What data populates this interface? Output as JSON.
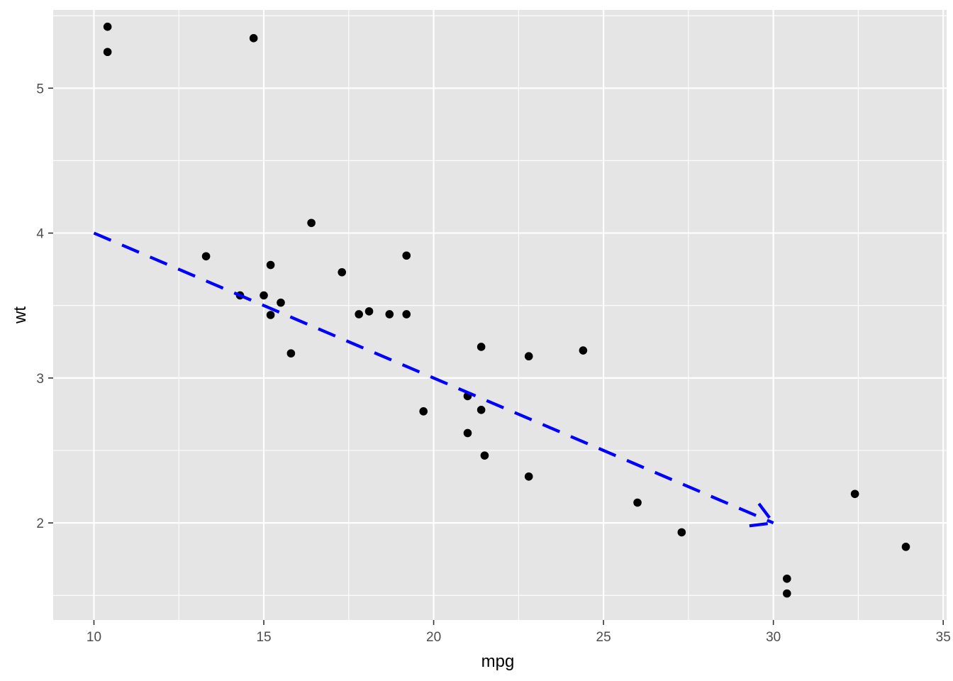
{
  "chart_data": {
    "type": "scatter",
    "title": "",
    "xlabel": "mpg",
    "ylabel": "wt",
    "xlim": [
      8.8,
      35.1
    ],
    "ylim": [
      1.33,
      5.54
    ],
    "x_ticks": [
      10,
      15,
      20,
      25,
      30,
      35
    ],
    "x_minor_ticks": [
      12.5,
      17.5,
      22.5,
      27.5,
      32.5
    ],
    "y_ticks": [
      2,
      3,
      4,
      5
    ],
    "y_minor_ticks": [
      1.5,
      2.5,
      3.5,
      4.5,
      5.5
    ],
    "x_tick_labels": [
      "10",
      "15",
      "20",
      "25",
      "30",
      "35"
    ],
    "y_tick_labels": [
      "2",
      "3",
      "4",
      "5"
    ],
    "grid": true,
    "panel_color": "#e5e5e5",
    "point_color": "#000000",
    "points": [
      {
        "x": 21.0,
        "y": 2.62
      },
      {
        "x": 21.0,
        "y": 2.875
      },
      {
        "x": 22.8,
        "y": 2.32
      },
      {
        "x": 21.4,
        "y": 3.215
      },
      {
        "x": 18.7,
        "y": 3.44
      },
      {
        "x": 18.1,
        "y": 3.46
      },
      {
        "x": 14.3,
        "y": 3.57
      },
      {
        "x": 24.4,
        "y": 3.19
      },
      {
        "x": 22.8,
        "y": 3.15
      },
      {
        "x": 19.2,
        "y": 3.44
      },
      {
        "x": 17.8,
        "y": 3.44
      },
      {
        "x": 16.4,
        "y": 4.07
      },
      {
        "x": 17.3,
        "y": 3.73
      },
      {
        "x": 15.2,
        "y": 3.78
      },
      {
        "x": 10.4,
        "y": 5.25
      },
      {
        "x": 10.4,
        "y": 5.424
      },
      {
        "x": 14.7,
        "y": 5.345
      },
      {
        "x": 32.4,
        "y": 2.2
      },
      {
        "x": 30.4,
        "y": 1.615
      },
      {
        "x": 33.9,
        "y": 1.835
      },
      {
        "x": 21.5,
        "y": 2.465
      },
      {
        "x": 15.5,
        "y": 3.52
      },
      {
        "x": 15.2,
        "y": 3.435
      },
      {
        "x": 13.3,
        "y": 3.84
      },
      {
        "x": 19.2,
        "y": 3.845
      },
      {
        "x": 27.3,
        "y": 1.935
      },
      {
        "x": 26.0,
        "y": 2.14
      },
      {
        "x": 30.4,
        "y": 1.513
      },
      {
        "x": 15.8,
        "y": 3.17
      },
      {
        "x": 19.7,
        "y": 2.77
      },
      {
        "x": 15.0,
        "y": 3.57
      },
      {
        "x": 21.4,
        "y": 2.78
      }
    ],
    "annotations": [
      {
        "type": "segment-arrow",
        "x": 10,
        "y": 4,
        "xend": 30,
        "yend": 2,
        "color": "#0000ff",
        "linetype": "dashed",
        "arrow_head": "open"
      }
    ]
  }
}
